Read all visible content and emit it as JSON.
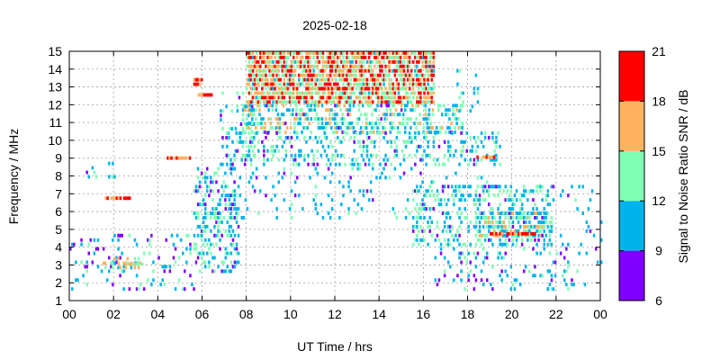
{
  "chart_data": {
    "type": "heatmap",
    "title": "2025-02-18",
    "xlabel": "UT Time / hrs",
    "ylabel": "Frequency / MHz",
    "colorbar_label": "Signal to Noise Ratio SNR / dB",
    "xlim": [
      0,
      24
    ],
    "ylim": [
      1,
      15
    ],
    "x_ticks": [
      "00",
      "02",
      "04",
      "06",
      "08",
      "10",
      "12",
      "14",
      "16",
      "18",
      "20",
      "22",
      "00"
    ],
    "y_ticks": [
      "1",
      "2",
      "3",
      "4",
      "5",
      "6",
      "7",
      "8",
      "9",
      "10",
      "11",
      "12",
      "13",
      "14",
      "15"
    ],
    "grid": true,
    "colorbar": {
      "range": [
        6,
        21
      ],
      "ticks": [
        "6",
        "9",
        "12",
        "15",
        "18",
        "21"
      ],
      "bands": [
        {
          "from": 6,
          "to": 9,
          "color": "#7f00ff"
        },
        {
          "from": 9,
          "to": 12,
          "color": "#00b4eb"
        },
        {
          "from": 12,
          "to": 15,
          "color": "#80ffb4"
        },
        {
          "from": 15,
          "to": 18,
          "color": "#ffb360"
        },
        {
          "from": 18,
          "to": 21,
          "color": "#ff0000"
        }
      ]
    },
    "regions": [
      {
        "x": [
          0.0,
          5.6
        ],
        "y": [
          1.5,
          4.6
        ],
        "density": 0.14,
        "snr": 10.5,
        "spread": 3
      },
      {
        "x": [
          1.5,
          3.2
        ],
        "y": [
          2.7,
          3.3
        ],
        "density": 0.45,
        "snr": 14,
        "spread": 4
      },
      {
        "x": [
          5.6,
          7.6
        ],
        "y": [
          2.5,
          8.5
        ],
        "density": 0.35,
        "snr": 11,
        "spread": 3
      },
      {
        "x": [
          6.8,
          8.3
        ],
        "y": [
          8.5,
          13.0
        ],
        "density": 0.18,
        "snr": 11,
        "spread": 3
      },
      {
        "x": [
          8.0,
          16.5
        ],
        "y": [
          12.0,
          15.0
        ],
        "density": 0.8,
        "snr": 16.5,
        "spread": 5
      },
      {
        "x": [
          7.8,
          17.8
        ],
        "y": [
          10.3,
          12.0
        ],
        "density": 0.45,
        "snr": 12.5,
        "spread": 4
      },
      {
        "x": [
          7.0,
          19.5
        ],
        "y": [
          8.5,
          10.3
        ],
        "density": 0.25,
        "snr": 11.5,
        "spread": 3
      },
      {
        "x": [
          7.0,
          19.0
        ],
        "y": [
          5.5,
          8.5
        ],
        "density": 0.09,
        "snr": 10.5,
        "spread": 2
      },
      {
        "x": [
          15.5,
          21.8
        ],
        "y": [
          4.0,
          7.5
        ],
        "density": 0.3,
        "snr": 11.5,
        "spread": 3
      },
      {
        "x": [
          18.5,
          21.5
        ],
        "y": [
          4.5,
          6.0
        ],
        "density": 0.6,
        "snr": 12.5,
        "spread": 4
      },
      {
        "x": [
          16.5,
          22.5
        ],
        "y": [
          1.5,
          4.0
        ],
        "density": 0.12,
        "snr": 10.5,
        "spread": 3
      },
      {
        "x": [
          17.5,
          18.5
        ],
        "y": [
          11.5,
          14.0
        ],
        "density": 0.1,
        "snr": 11,
        "spread": 2
      },
      {
        "x": [
          21.5,
          24.0
        ],
        "y": [
          1.5,
          7.5
        ],
        "density": 0.05,
        "snr": 10.5,
        "spread": 2
      },
      {
        "x": [
          0.5,
          2.0
        ],
        "y": [
          7.8,
          8.6
        ],
        "density": 0.1,
        "snr": 10.5,
        "spread": 2
      }
    ],
    "features": [
      {
        "x": [
          1.6,
          2.8
        ],
        "y": [
          6.6,
          6.8
        ],
        "snr": 18.5
      },
      {
        "x": [
          4.4,
          5.4
        ],
        "y": [
          8.85,
          9.05
        ],
        "snr": 18.5
      },
      {
        "x": [
          5.6,
          6.0
        ],
        "y": [
          13.0,
          13.3
        ],
        "snr": 18.5
      },
      {
        "x": [
          5.8,
          6.4
        ],
        "y": [
          12.4,
          12.6
        ],
        "snr": 18.5
      },
      {
        "x": [
          18.4,
          19.2
        ],
        "y": [
          8.9,
          9.1
        ],
        "snr": 18.5
      },
      {
        "x": [
          19.0,
          21.0
        ],
        "y": [
          4.6,
          4.8
        ],
        "snr": 18.5
      },
      {
        "x": [
          2.5,
          3.5
        ],
        "y": [
          2.9,
          3.1
        ],
        "snr": 15.5
      }
    ]
  }
}
